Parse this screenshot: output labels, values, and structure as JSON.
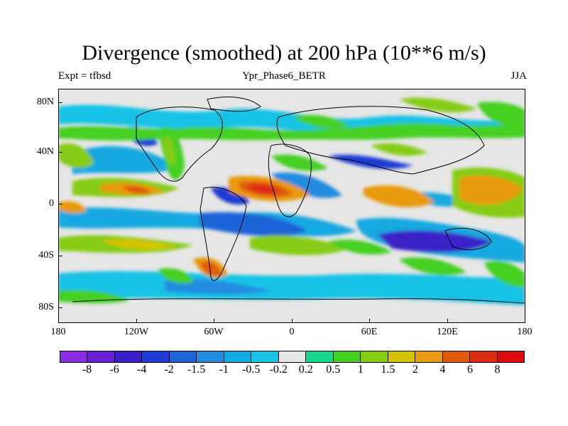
{
  "title": "Divergence (smoothed) at 200 hPa (10**6 m/s)",
  "subtitle_left": "Expt = tfbsd",
  "subtitle_center": "Ypr_Phase6_BETR",
  "subtitle_right": "JJA",
  "y_axis_labels": [
    "80N",
    "40N",
    "0",
    "40S",
    "80S"
  ],
  "x_axis_labels": [
    "180",
    "120W",
    "60W",
    "0",
    "60E",
    "120E",
    "180"
  ],
  "colorbar": {
    "levels": [
      "-8",
      "-6",
      "-4",
      "-2",
      "-1.5",
      "-1",
      "-0.5",
      "-0.2",
      "0.2",
      "0.5",
      "1",
      "1.5",
      "2",
      "4",
      "6",
      "8"
    ],
    "colors": [
      "#8c2ce0",
      "#6a1fd6",
      "#3a20c8",
      "#1f3cd4",
      "#1e64d8",
      "#228ce0",
      "#12a8e0",
      "#19c3e6",
      "#e6e6e6",
      "#16d88a",
      "#44d020",
      "#86cc12",
      "#d4c400",
      "#e89a10",
      "#e05a0a",
      "#dc2c14",
      "#dc0a0a"
    ]
  },
  "colors": {
    "land_outline": "#000000",
    "background": "#e6e6e6"
  }
}
